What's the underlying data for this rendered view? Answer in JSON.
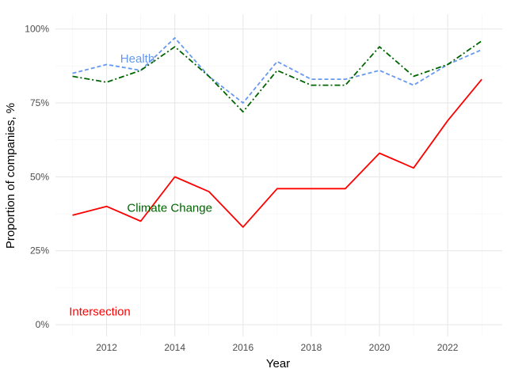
{
  "chart_data": {
    "type": "line",
    "title": "",
    "xlabel": "Year",
    "ylabel": "Proportion of companies, %",
    "xlim": [
      2010.5,
      2023.6
    ],
    "ylim": [
      -4,
      105
    ],
    "x_ticks": [
      2012,
      2014,
      2016,
      2018,
      2020,
      2022
    ],
    "y_ticks": [
      0,
      25,
      50,
      75,
      100
    ],
    "y_tick_labels": [
      "0%",
      "25%",
      "50%",
      "75%",
      "100%"
    ],
    "grid": true,
    "legend": "none",
    "x": [
      2011,
      2012,
      2013,
      2014,
      2015,
      2016,
      2017,
      2018,
      2019,
      2020,
      2021,
      2022,
      2023
    ],
    "series": [
      {
        "name": "Health",
        "color": "#6699ee",
        "dash": "dashed",
        "values": [
          85,
          88,
          86,
          97,
          84,
          75,
          89,
          83,
          83,
          86,
          81,
          88,
          93
        ],
        "label_anchor": [
          2012.4,
          90
        ]
      },
      {
        "name": "Climate Change",
        "color": "#006400",
        "dash": "dashdot",
        "values": [
          84,
          82,
          86,
          94,
          84,
          72,
          86,
          81,
          81,
          94,
          84,
          88,
          96
        ],
        "label_anchor": [
          2012.6,
          39.5
        ]
      },
      {
        "name": "Intersection",
        "color": "#ff0000",
        "dash": "solid",
        "values": [
          37,
          40,
          35,
          50,
          45,
          33,
          46,
          46,
          46,
          58,
          53,
          69,
          83
        ],
        "label_anchor": [
          2010.9,
          4.5
        ]
      }
    ]
  }
}
